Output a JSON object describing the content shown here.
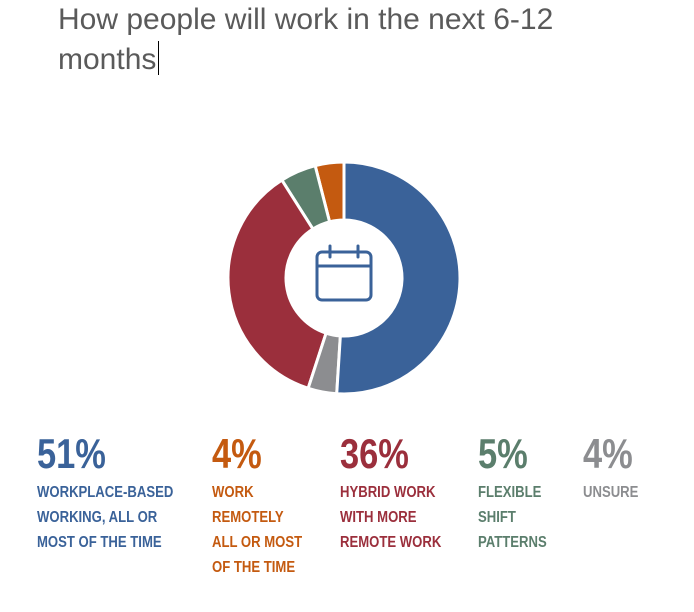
{
  "chart_data": {
    "type": "donut",
    "title": "How people will work in the next 6-12 months",
    "categories": [
      [
        "WORKPLACE-BASED",
        "WORKING, ALL OR",
        "MOST OF THE TIME"
      ],
      [
        "UNSURE"
      ],
      [
        "HYBRID WORK",
        "WITH MORE",
        "REMOTE WORK"
      ],
      [
        "FLEXIBLE",
        "SHIFT",
        "PATTERNS"
      ],
      [
        "WORK",
        "REMOTELY",
        "ALL OR MOST",
        "OF THE TIME"
      ]
    ],
    "values": [
      51,
      4,
      36,
      5,
      4
    ],
    "value_labels": [
      "51%",
      "4%",
      "36%",
      "5%",
      "4%"
    ],
    "colors": [
      "#3a6299",
      "#8c8d90",
      "#9b2f3c",
      "#5b7e6c",
      "#c45a10"
    ]
  }
}
